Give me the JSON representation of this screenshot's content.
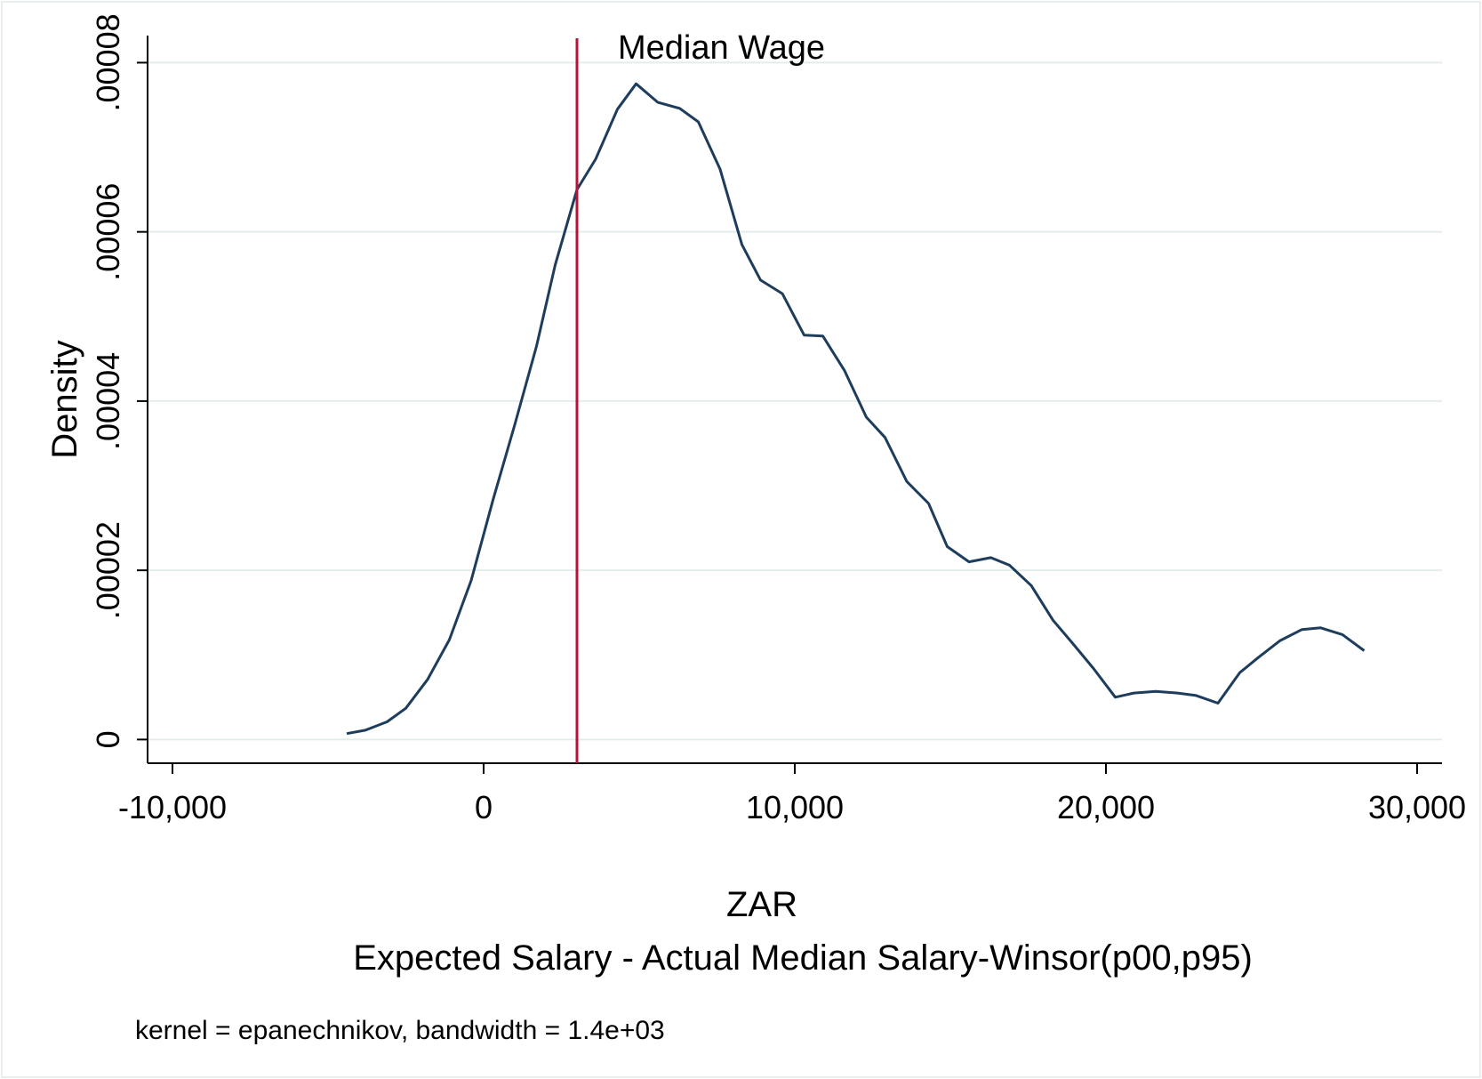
{
  "chart_data": {
    "type": "line",
    "title": "",
    "xlabel": "ZAR",
    "xlabel_sub": "Expected Salary - Actual Median Salary-Winsor(p00,p95)",
    "ylabel": "Density",
    "note": "kernel = epanechnikov, bandwidth =  1.4e+03",
    "xlim": [
      -10800,
      30800
    ],
    "ylim": [
      -2.8e-06,
      8.32e-05
    ],
    "x_ticks": [
      -10000,
      0,
      10000,
      20000,
      30000
    ],
    "x_tick_labels": [
      "-10,000",
      "0",
      "10,000",
      "20,000",
      "30,000"
    ],
    "y_ticks": [
      0,
      2e-05,
      4e-05,
      6e-05,
      8e-05
    ],
    "y_tick_labels": [
      "0",
      ".00002",
      ".00004",
      ".00006",
      ".00008"
    ],
    "grid": true,
    "reference_line": {
      "x": 3000,
      "label": "Median Wage",
      "color": "#b5133a"
    },
    "series": [
      {
        "color": "#1e3d5c",
        "x": [
          -4400,
          -3800,
          -3100,
          -2500,
          -1800,
          -1100,
          -400,
          300,
          1000,
          1700,
          2300,
          3000,
          3600,
          4300,
          4900,
          5600,
          6300,
          6900,
          7600,
          8300,
          8900,
          9600,
          10300,
          10900,
          11600,
          12300,
          12900,
          13600,
          14300,
          14900,
          15600,
          16300,
          16900,
          17600,
          18300,
          18900,
          19600,
          20300,
          20900,
          21600,
          22300,
          22900,
          23600,
          24300,
          24900,
          25600,
          26300,
          26900,
          27600,
          28300
        ],
        "y": [
          7e-07,
          1.1e-06,
          2.1e-06,
          3.7e-06,
          7.1e-06,
          1.18e-05,
          1.88e-05,
          2.83e-05,
          3.72e-05,
          4.65e-05,
          5.61e-05,
          6.5e-05,
          6.86e-05,
          7.45e-05,
          7.75e-05,
          7.53e-05,
          7.46e-05,
          7.3e-05,
          6.74e-05,
          5.85e-05,
          5.43e-05,
          5.27e-05,
          4.78e-05,
          4.77e-05,
          4.36e-05,
          3.81e-05,
          3.57e-05,
          3.05e-05,
          2.79e-05,
          2.28e-05,
          2.1e-05,
          2.15e-05,
          2.06e-05,
          1.82e-05,
          1.41e-05,
          1.15e-05,
          8.4e-06,
          5e-06,
          5.5e-06,
          5.7e-06,
          5.5e-06,
          5.2e-06,
          4.3e-06,
          7.9e-06,
          9.7e-06,
          1.17e-05,
          1.3e-05,
          1.32e-05,
          1.24e-05,
          1.05e-05
        ]
      }
    ]
  }
}
